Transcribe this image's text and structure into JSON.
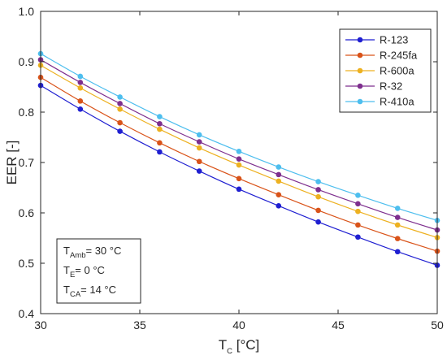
{
  "chart_data": {
    "type": "line",
    "xlabel": {
      "main": "T",
      "sub": "C",
      "unit": " [°C]"
    },
    "ylabel": "EER [-]",
    "xlim": [
      30,
      50
    ],
    "ylim": [
      0.4,
      1.0
    ],
    "x_ticks": [
      "30",
      "35",
      "40",
      "45",
      "50"
    ],
    "y_ticks": [
      "0.4",
      "0.5",
      "0.6",
      "0.7",
      "0.8",
      "0.9",
      "1.0"
    ],
    "x_tick_values": [
      30,
      35,
      40,
      45,
      50
    ],
    "y_tick_values": [
      0.4,
      0.5,
      0.6,
      0.7,
      0.8,
      0.9,
      1.0
    ],
    "grid": false,
    "legend_position": "top-right",
    "x": [
      30,
      32,
      34,
      36,
      38,
      40,
      42,
      44,
      46,
      48,
      50
    ],
    "series": [
      {
        "name": "R-123",
        "color": "#1f1fd1",
        "values": [
          0.853,
          0.806,
          0.762,
          0.721,
          0.683,
          0.647,
          0.614,
          0.582,
          0.552,
          0.523,
          0.496
        ]
      },
      {
        "name": "R-245fa",
        "color": "#d95319",
        "values": [
          0.869,
          0.822,
          0.779,
          0.739,
          0.702,
          0.668,
          0.636,
          0.605,
          0.576,
          0.549,
          0.524
        ]
      },
      {
        "name": "R-600a",
        "color": "#edb120",
        "values": [
          0.893,
          0.848,
          0.806,
          0.766,
          0.729,
          0.695,
          0.663,
          0.632,
          0.603,
          0.576,
          0.551
        ]
      },
      {
        "name": "R-32",
        "color": "#7e2f8e",
        "values": [
          0.904,
          0.859,
          0.817,
          0.777,
          0.741,
          0.707,
          0.676,
          0.646,
          0.618,
          0.591,
          0.566
        ]
      },
      {
        "name": "R-410a",
        "color": "#4dbeee",
        "values": [
          0.916,
          0.871,
          0.83,
          0.791,
          0.755,
          0.722,
          0.691,
          0.662,
          0.635,
          0.609,
          0.585
        ]
      }
    ],
    "annotation": [
      {
        "main": "T",
        "sub": "Amb",
        "rest": "= 30 °C"
      },
      {
        "main": "T",
        "sub": "E",
        "rest": "= 0 °C"
      },
      {
        "main": "T",
        "sub": "CA",
        "rest": "= 14 °C"
      }
    ]
  }
}
